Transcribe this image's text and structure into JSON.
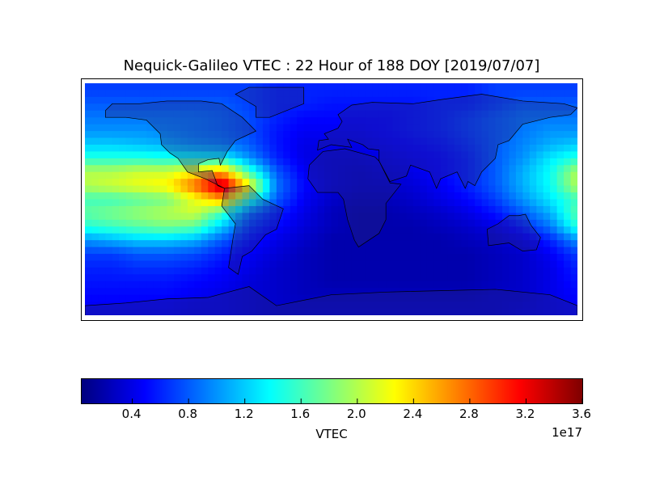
{
  "chart_data": {
    "type": "heatmap",
    "title": "Nequick-Galileo VTEC : 22 Hour of 188 DOY [2019/07/07]",
    "projection": "equirectangular world map with coastlines and country borders",
    "colormap": "jet",
    "colorbar": {
      "label": "VTEC",
      "exponent_label": "1e17",
      "ticks": [
        "0.4",
        "0.8",
        "1.2",
        "1.6",
        "2.0",
        "2.4",
        "2.8",
        "3.2",
        "3.6"
      ],
      "range": [
        0.04,
        3.6
      ],
      "orientation": "horizontal",
      "placement": "bottom"
    },
    "units_scale": 1e+17,
    "lon": [
      -180,
      -160,
      -140,
      -120,
      -100,
      -80,
      -60,
      -40,
      -20,
      0,
      20,
      40,
      60,
      80,
      100,
      120,
      140,
      160,
      180
    ],
    "lat": [
      80,
      70,
      60,
      50,
      40,
      30,
      20,
      10,
      0,
      -10,
      -20,
      -30,
      -40,
      -50,
      -60,
      -70,
      -80
    ],
    "values": [
      [
        0.7,
        0.7,
        0.7,
        0.7,
        0.7,
        0.7,
        0.7,
        0.6,
        0.6,
        0.6,
        0.6,
        0.6,
        0.6,
        0.6,
        0.6,
        0.7,
        0.7,
        0.7,
        0.7
      ],
      [
        0.8,
        0.8,
        0.8,
        0.8,
        0.8,
        0.8,
        0.7,
        0.6,
        0.6,
        0.55,
        0.55,
        0.55,
        0.55,
        0.6,
        0.6,
        0.7,
        0.8,
        0.8,
        0.8
      ],
      [
        0.9,
        0.9,
        0.9,
        0.9,
        0.9,
        0.85,
        0.75,
        0.6,
        0.5,
        0.5,
        0.5,
        0.5,
        0.55,
        0.6,
        0.7,
        0.8,
        0.9,
        0.9,
        0.9
      ],
      [
        1.0,
        1.0,
        1.0,
        0.95,
        0.9,
        0.85,
        0.75,
        0.55,
        0.45,
        0.45,
        0.45,
        0.5,
        0.55,
        0.6,
        0.7,
        0.8,
        0.9,
        1.0,
        1.0
      ],
      [
        1.2,
        1.2,
        1.15,
        1.1,
        1.0,
        0.95,
        0.8,
        0.55,
        0.4,
        0.4,
        0.4,
        0.45,
        0.5,
        0.55,
        0.65,
        0.8,
        0.95,
        1.1,
        1.2
      ],
      [
        1.5,
        1.5,
        1.5,
        1.45,
        1.45,
        1.4,
        1.0,
        0.6,
        0.4,
        0.35,
        0.35,
        0.4,
        0.45,
        0.5,
        0.6,
        0.8,
        1.0,
        1.3,
        1.5
      ],
      [
        2.0,
        2.0,
        2.1,
        2.1,
        2.3,
        2.6,
        1.6,
        0.8,
        0.45,
        0.35,
        0.3,
        0.35,
        0.4,
        0.5,
        0.6,
        0.8,
        1.1,
        1.4,
        2.0
      ],
      [
        2.0,
        2.1,
        2.2,
        2.3,
        2.8,
        3.5,
        2.3,
        0.9,
        0.5,
        0.35,
        0.3,
        0.3,
        0.35,
        0.45,
        0.6,
        0.8,
        1.1,
        1.4,
        2.0
      ],
      [
        1.6,
        1.6,
        1.7,
        1.8,
        2.2,
        2.6,
        1.6,
        0.8,
        0.45,
        0.3,
        0.25,
        0.25,
        0.3,
        0.4,
        0.5,
        0.7,
        1.0,
        1.3,
        1.6
      ],
      [
        1.7,
        1.8,
        1.9,
        2.0,
        2.1,
        1.6,
        0.9,
        0.6,
        0.4,
        0.25,
        0.2,
        0.2,
        0.25,
        0.3,
        0.4,
        0.55,
        0.8,
        1.1,
        1.7
      ],
      [
        1.5,
        1.6,
        1.7,
        1.8,
        1.7,
        1.2,
        0.7,
        0.5,
        0.35,
        0.25,
        0.2,
        0.2,
        0.2,
        0.25,
        0.3,
        0.4,
        0.6,
        0.9,
        1.5
      ],
      [
        1.0,
        1.1,
        1.2,
        1.2,
        1.1,
        0.8,
        0.55,
        0.4,
        0.3,
        0.2,
        0.2,
        0.2,
        0.2,
        0.2,
        0.25,
        0.3,
        0.4,
        0.6,
        1.0
      ],
      [
        0.7,
        0.7,
        0.8,
        0.8,
        0.75,
        0.6,
        0.45,
        0.35,
        0.25,
        0.2,
        0.2,
        0.2,
        0.2,
        0.2,
        0.2,
        0.25,
        0.3,
        0.45,
        0.7
      ],
      [
        0.6,
        0.6,
        0.65,
        0.65,
        0.6,
        0.5,
        0.4,
        0.3,
        0.25,
        0.2,
        0.2,
        0.2,
        0.2,
        0.2,
        0.2,
        0.25,
        0.3,
        0.4,
        0.6
      ],
      [
        0.55,
        0.55,
        0.55,
        0.55,
        0.5,
        0.45,
        0.35,
        0.3,
        0.25,
        0.2,
        0.2,
        0.2,
        0.2,
        0.2,
        0.2,
        0.25,
        0.3,
        0.4,
        0.55
      ],
      [
        0.5,
        0.5,
        0.5,
        0.5,
        0.45,
        0.4,
        0.35,
        0.3,
        0.25,
        0.25,
        0.25,
        0.25,
        0.25,
        0.25,
        0.25,
        0.3,
        0.3,
        0.4,
        0.5
      ],
      [
        0.45,
        0.45,
        0.45,
        0.45,
        0.4,
        0.4,
        0.35,
        0.3,
        0.3,
        0.3,
        0.3,
        0.3,
        0.3,
        0.3,
        0.3,
        0.3,
        0.35,
        0.4,
        0.45
      ]
    ]
  }
}
